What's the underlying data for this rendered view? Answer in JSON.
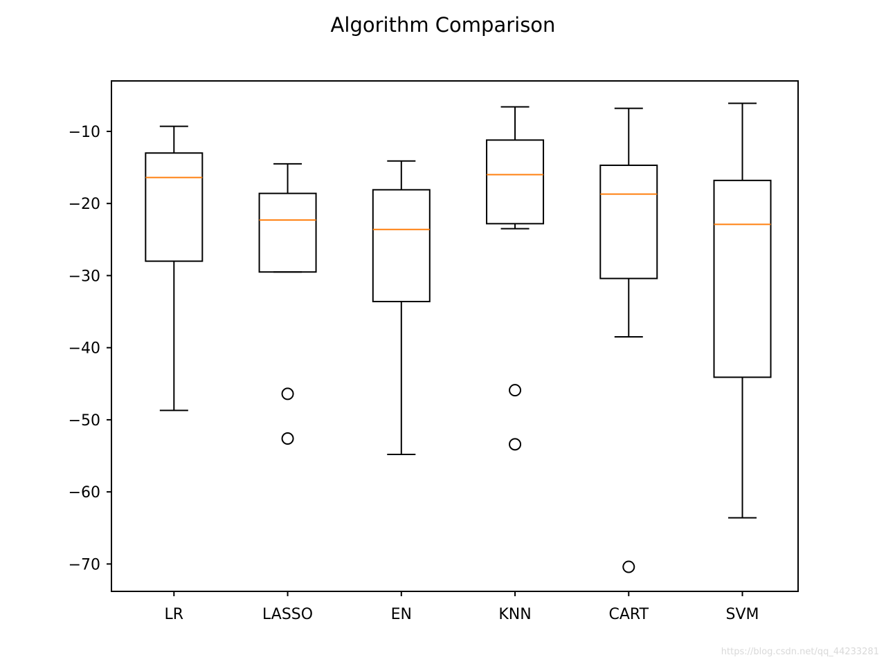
{
  "chart_data": {
    "type": "box",
    "title": "Algorithm Comparison",
    "xlabel": "",
    "ylabel": "",
    "ylim": [
      -73.8,
      -3
    ],
    "yticks": [
      -10,
      -20,
      -30,
      -40,
      -50,
      -60,
      -70
    ],
    "ytick_labels": [
      "−10",
      "−20",
      "−30",
      "−40",
      "−50",
      "−60",
      "−70"
    ],
    "grid": false,
    "legend": "none",
    "categories": [
      "LR",
      "LASSO",
      "EN",
      "KNN",
      "CART",
      "SVM"
    ],
    "boxes": [
      {
        "category": "LR",
        "whisker_high": -9.3,
        "q3": -13.0,
        "median": -16.4,
        "q1": -28.0,
        "whisker_low": -48.7,
        "outliers": []
      },
      {
        "category": "LASSO",
        "whisker_high": -14.5,
        "q3": -18.6,
        "median": -22.3,
        "q1": -29.5,
        "whisker_low": -29.5,
        "outliers": [
          -46.4,
          -52.6
        ]
      },
      {
        "category": "EN",
        "whisker_high": -14.1,
        "q3": -18.1,
        "median": -23.6,
        "q1": -33.6,
        "whisker_low": -54.8,
        "outliers": []
      },
      {
        "category": "KNN",
        "whisker_high": -6.6,
        "q3": -11.2,
        "median": -16.0,
        "q1": -22.8,
        "whisker_low": -23.5,
        "outliers": [
          -45.9,
          -53.4
        ]
      },
      {
        "category": "CART",
        "whisker_high": -6.8,
        "q3": -14.7,
        "median": -18.7,
        "q1": -30.4,
        "whisker_low": -38.5,
        "outliers": [
          -70.4
        ]
      },
      {
        "category": "SVM",
        "whisker_high": -6.1,
        "q3": -16.8,
        "median": -22.9,
        "q1": -44.1,
        "whisker_low": -63.6,
        "outliers": []
      }
    ],
    "colors": {
      "box": "#000000",
      "median": "#ff7f0e",
      "axes": "#000000",
      "background": "#ffffff"
    }
  },
  "watermark": "https://blog.csdn.net/qq_44233281"
}
